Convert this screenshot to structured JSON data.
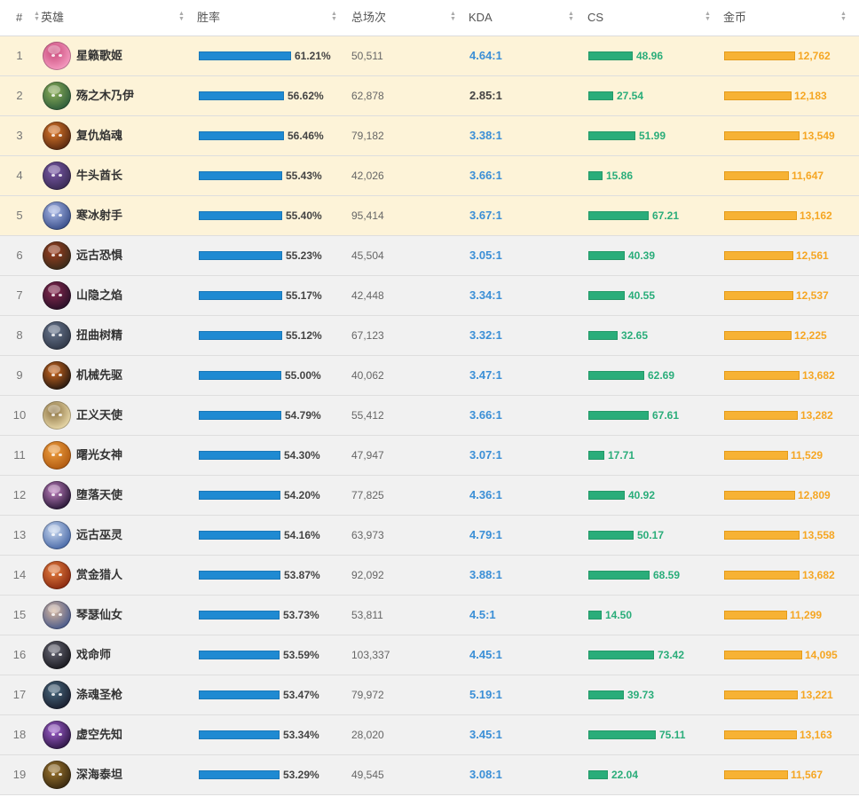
{
  "header": {
    "rank": "#",
    "hero": "英雄",
    "winrate": "胜率",
    "games": "总场次",
    "kda": "KDA",
    "cs": "CS",
    "gold": "金币"
  },
  "colors": {
    "winrate_bar": "#1f8ad2",
    "cs_bar": "#2aad7a",
    "gold_bar": "#f7b234",
    "kda_text": "#3b8fd6",
    "highlight_row": "#fdf3d8",
    "normal_row": "#f1f1f1"
  },
  "rows": [
    {
      "rank": "1",
      "hero": "星籁歌姬",
      "avatar_icon": "champion-avatar-seraphine",
      "winrate": "61.21%",
      "winrate_value": 61.21,
      "games": "50,511",
      "kda": "4.64:1",
      "cs": "48.96",
      "cs_value": 48.96,
      "gold": "12,762",
      "gold_value": 12762,
      "highlight": true
    },
    {
      "rank": "2",
      "hero": "殇之木乃伊",
      "avatar_icon": "champion-avatar-amumu",
      "winrate": "56.62%",
      "winrate_value": 56.62,
      "games": "62,878",
      "kda": "2.85:1",
      "cs": "27.54",
      "cs_value": 27.54,
      "gold": "12,183",
      "gold_value": 12183,
      "highlight": true
    },
    {
      "rank": "3",
      "hero": "复仇焰魂",
      "avatar_icon": "champion-avatar-brand",
      "winrate": "56.46%",
      "winrate_value": 56.46,
      "games": "79,182",
      "kda": "3.38:1",
      "cs": "51.99",
      "cs_value": 51.99,
      "gold": "13,549",
      "gold_value": 13549,
      "highlight": true
    },
    {
      "rank": "4",
      "hero": "牛头酋长",
      "avatar_icon": "champion-avatar-alistar",
      "winrate": "55.43%",
      "winrate_value": 55.43,
      "games": "42,026",
      "kda": "3.66:1",
      "cs": "15.86",
      "cs_value": 15.86,
      "gold": "11,647",
      "gold_value": 11647,
      "highlight": true
    },
    {
      "rank": "5",
      "hero": "寒冰射手",
      "avatar_icon": "champion-avatar-ashe",
      "winrate": "55.40%",
      "winrate_value": 55.4,
      "games": "95,414",
      "kda": "3.67:1",
      "cs": "67.21",
      "cs_value": 67.21,
      "gold": "13,162",
      "gold_value": 13162,
      "highlight": true
    },
    {
      "rank": "6",
      "hero": "远古恐惧",
      "avatar_icon": "champion-avatar-fiddlesticks",
      "winrate": "55.23%",
      "winrate_value": 55.23,
      "games": "45,504",
      "kda": "3.05:1",
      "cs": "40.39",
      "cs_value": 40.39,
      "gold": "12,561",
      "gold_value": 12561,
      "highlight": false
    },
    {
      "rank": "7",
      "hero": "山隐之焰",
      "avatar_icon": "champion-avatar-ornn",
      "winrate": "55.17%",
      "winrate_value": 55.17,
      "games": "42,448",
      "kda": "3.34:1",
      "cs": "40.55",
      "cs_value": 40.55,
      "gold": "12,537",
      "gold_value": 12537,
      "highlight": false
    },
    {
      "rank": "8",
      "hero": "扭曲树精",
      "avatar_icon": "champion-avatar-maokai",
      "winrate": "55.12%",
      "winrate_value": 55.12,
      "games": "67,123",
      "kda": "3.32:1",
      "cs": "32.65",
      "cs_value": 32.65,
      "gold": "12,225",
      "gold_value": 12225,
      "highlight": false
    },
    {
      "rank": "9",
      "hero": "机械先驱",
      "avatar_icon": "champion-avatar-viktor",
      "winrate": "55.00%",
      "winrate_value": 55.0,
      "games": "40,062",
      "kda": "3.47:1",
      "cs": "62.69",
      "cs_value": 62.69,
      "gold": "13,682",
      "gold_value": 13682,
      "highlight": false
    },
    {
      "rank": "10",
      "hero": "正义天使",
      "avatar_icon": "champion-avatar-kayle",
      "winrate": "54.79%",
      "winrate_value": 54.79,
      "games": "55,412",
      "kda": "3.66:1",
      "cs": "67.61",
      "cs_value": 67.61,
      "gold": "13,282",
      "gold_value": 13282,
      "highlight": false
    },
    {
      "rank": "11",
      "hero": "曙光女神",
      "avatar_icon": "champion-avatar-leona",
      "winrate": "54.30%",
      "winrate_value": 54.3,
      "games": "47,947",
      "kda": "3.07:1",
      "cs": "17.71",
      "cs_value": 17.71,
      "gold": "11,529",
      "gold_value": 11529,
      "highlight": false
    },
    {
      "rank": "12",
      "hero": "堕落天使",
      "avatar_icon": "champion-avatar-morgana",
      "winrate": "54.20%",
      "winrate_value": 54.2,
      "games": "77,825",
      "kda": "4.36:1",
      "cs": "40.92",
      "cs_value": 40.92,
      "gold": "12,809",
      "gold_value": 12809,
      "highlight": false
    },
    {
      "rank": "13",
      "hero": "远古巫灵",
      "avatar_icon": "champion-avatar-xerath",
      "winrate": "54.16%",
      "winrate_value": 54.16,
      "games": "63,973",
      "kda": "4.79:1",
      "cs": "50.17",
      "cs_value": 50.17,
      "gold": "13,558",
      "gold_value": 13558,
      "highlight": false
    },
    {
      "rank": "14",
      "hero": "赏金猎人",
      "avatar_icon": "champion-avatar-miss-fortune",
      "winrate": "53.87%",
      "winrate_value": 53.87,
      "games": "92,092",
      "kda": "3.88:1",
      "cs": "68.59",
      "cs_value": 68.59,
      "gold": "13,682",
      "gold_value": 13682,
      "highlight": false
    },
    {
      "rank": "15",
      "hero": "琴瑟仙女",
      "avatar_icon": "champion-avatar-sona",
      "winrate": "53.73%",
      "winrate_value": 53.73,
      "games": "53,811",
      "kda": "4.5:1",
      "cs": "14.50",
      "cs_value": 14.5,
      "gold": "11,299",
      "gold_value": 11299,
      "highlight": false
    },
    {
      "rank": "16",
      "hero": "戏命师",
      "avatar_icon": "champion-avatar-jhin",
      "winrate": "53.59%",
      "winrate_value": 53.59,
      "games": "103,337",
      "kda": "4.45:1",
      "cs": "73.42",
      "cs_value": 73.42,
      "gold": "14,095",
      "gold_value": 14095,
      "highlight": false
    },
    {
      "rank": "17",
      "hero": "涤魂圣枪",
      "avatar_icon": "champion-avatar-senna",
      "winrate": "53.47%",
      "winrate_value": 53.47,
      "games": "79,972",
      "kda": "5.19:1",
      "cs": "39.73",
      "cs_value": 39.73,
      "gold": "13,221",
      "gold_value": 13221,
      "highlight": false
    },
    {
      "rank": "18",
      "hero": "虚空先知",
      "avatar_icon": "champion-avatar-malzahar",
      "winrate": "53.34%",
      "winrate_value": 53.34,
      "games": "28,020",
      "kda": "3.45:1",
      "cs": "75.11",
      "cs_value": 75.11,
      "gold": "13,163",
      "gold_value": 13163,
      "highlight": false
    },
    {
      "rank": "19",
      "hero": "深海泰坦",
      "avatar_icon": "champion-avatar-nautilus",
      "winrate": "53.29%",
      "winrate_value": 53.29,
      "games": "49,545",
      "kda": "3.08:1",
      "cs": "22.04",
      "cs_value": 22.04,
      "gold": "11,567",
      "gold_value": 11567,
      "highlight": false
    }
  ]
}
